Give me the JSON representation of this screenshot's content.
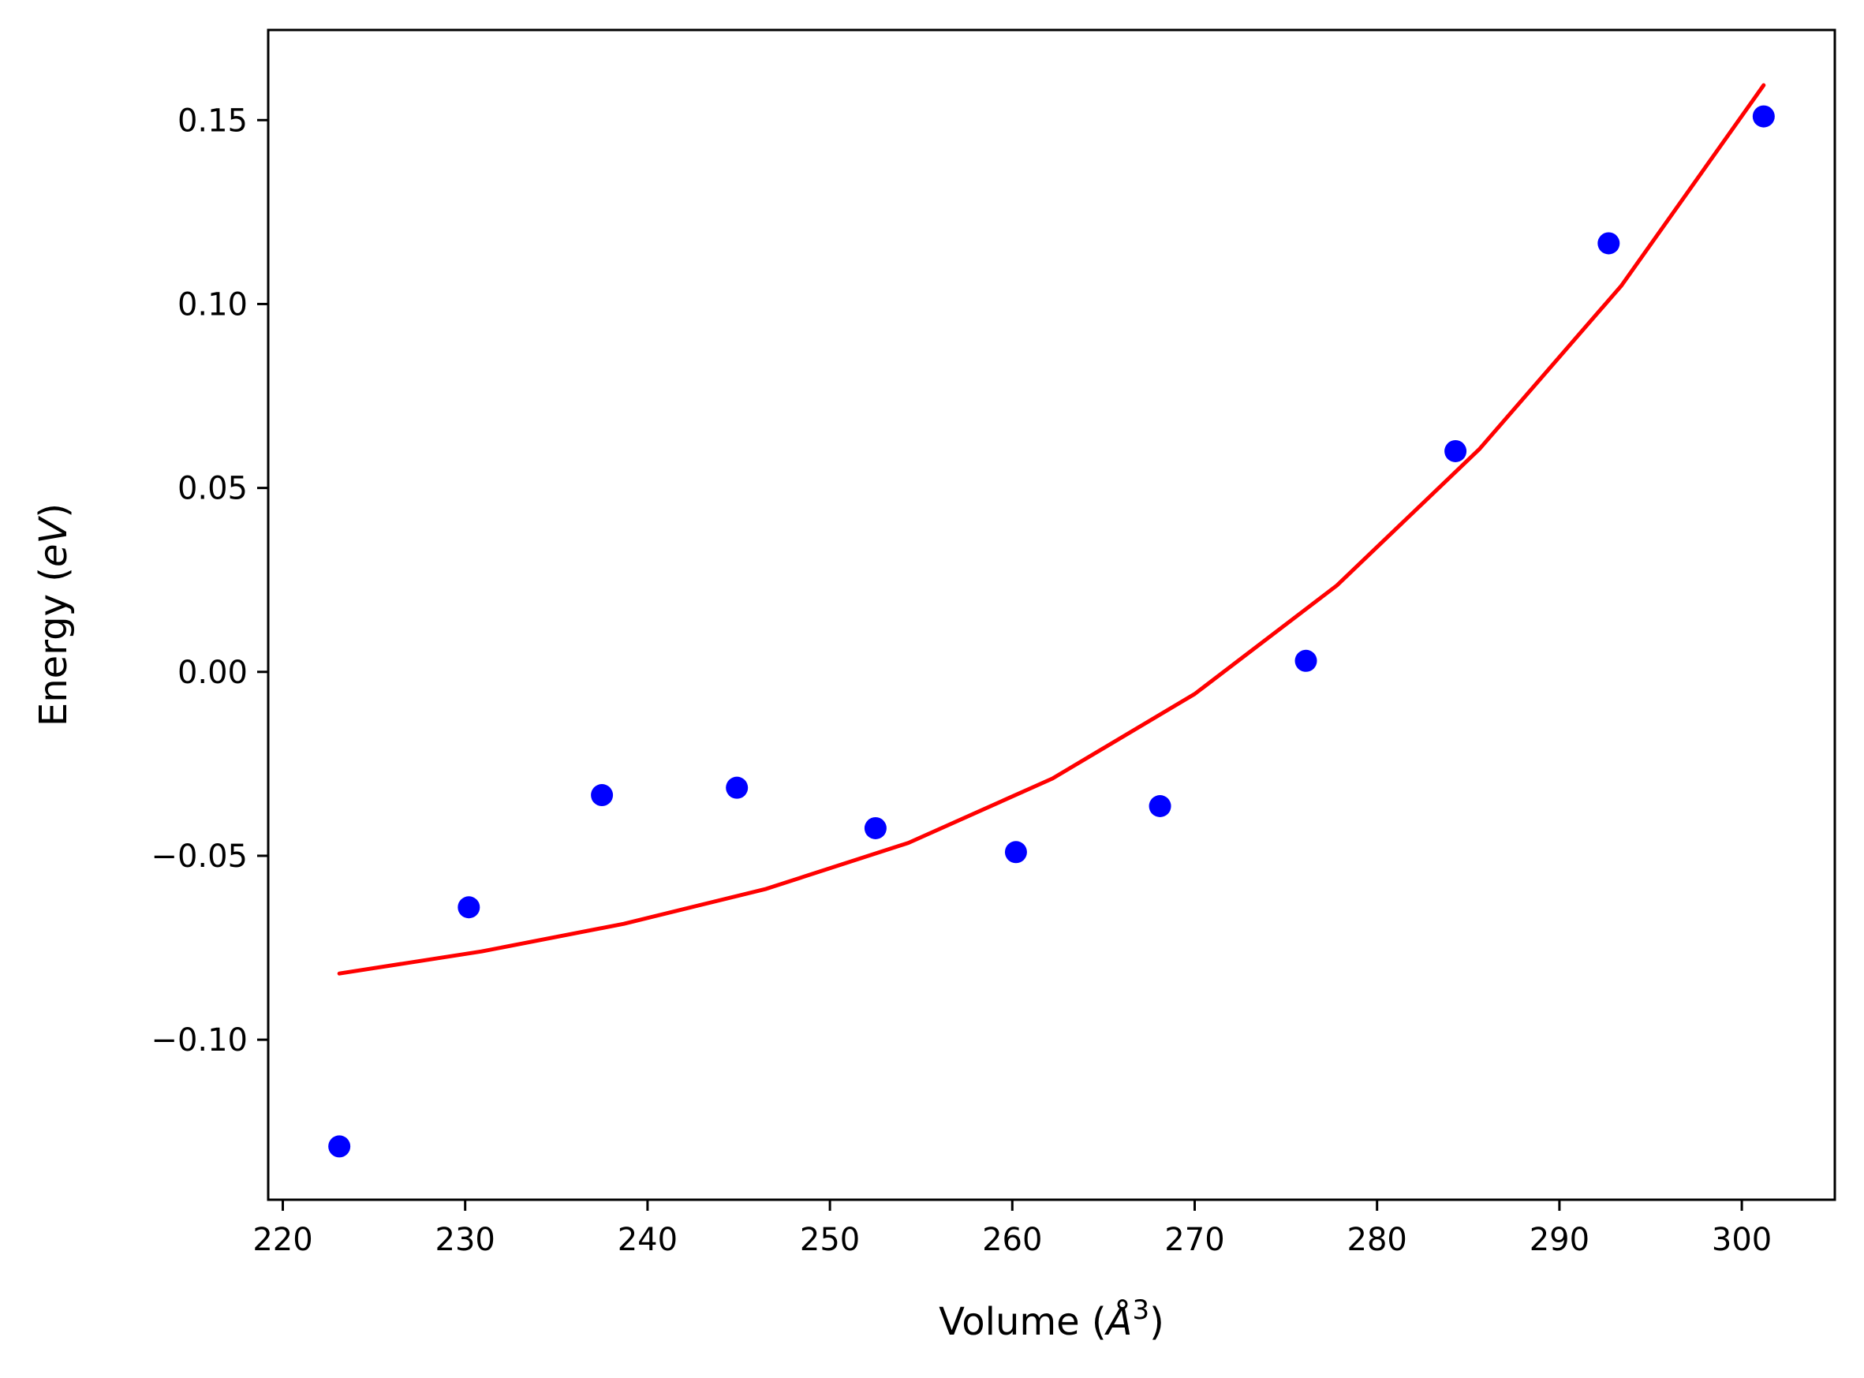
{
  "chart_data": {
    "type": "scatter",
    "xlabel": {
      "prefix": "Volume (",
      "symbol": "Å",
      "superscript": "3",
      "suffix": ")"
    },
    "ylabel": {
      "prefix": "Energy (",
      "symbol": "eV",
      "suffix": ")"
    },
    "xlim": [
      219.2,
      305.1
    ],
    "ylim": [
      -0.1435,
      0.1745
    ],
    "xticks": [
      220,
      230,
      240,
      250,
      260,
      270,
      280,
      290,
      300
    ],
    "xtick_labels": [
      "220",
      "230",
      "240",
      "250",
      "260",
      "270",
      "280",
      "290",
      "300"
    ],
    "yticks": [
      -0.1,
      -0.05,
      0.0,
      0.05,
      0.1,
      0.15
    ],
    "ytick_labels": [
      "−0.10",
      "−0.05",
      "0.00",
      "0.05",
      "0.10",
      "0.15"
    ],
    "grid": false,
    "series": [
      {
        "kind": "scatter",
        "color": "#0000ff",
        "x": [
          223.1,
          230.2,
          237.5,
          244.9,
          252.5,
          260.2,
          268.1,
          276.1,
          284.3,
          292.7,
          301.2
        ],
        "y": [
          -0.129,
          -0.064,
          -0.0335,
          -0.0315,
          -0.0425,
          -0.049,
          -0.0365,
          0.003,
          0.06,
          0.1165,
          0.151
        ]
      },
      {
        "kind": "line",
        "color": "#ff0000",
        "x": [
          223.1,
          230.9,
          238.7,
          246.5,
          254.3,
          262.2,
          270.0,
          277.8,
          285.6,
          293.4,
          301.2
        ],
        "y": [
          -0.082,
          -0.076,
          -0.0685,
          -0.059,
          -0.0465,
          -0.029,
          -0.006,
          0.0235,
          0.0605,
          0.105,
          0.1595
        ]
      }
    ]
  }
}
